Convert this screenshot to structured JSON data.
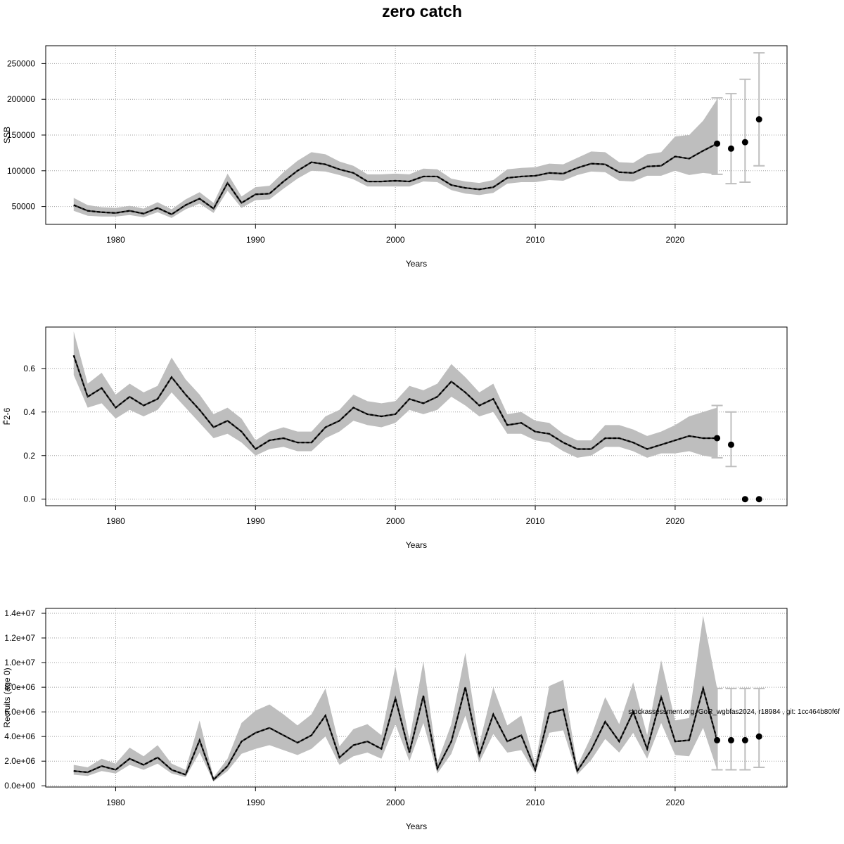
{
  "title": "zero catch",
  "watermark": "stockassessment.org, GoR_wgbfas2024, r18984 , git: 1cc464b80f6f",
  "colors": {
    "band": "#bebebe",
    "errorbar": "#bebebe",
    "line": "#000000",
    "grid": "#a0a0a0"
  },
  "chart_data": [
    {
      "type": "line",
      "panel": "ssb",
      "ylabel": "SSB",
      "xlabel": "Years",
      "xlim": [
        1975,
        2028
      ],
      "ylim": [
        25000,
        275000
      ],
      "xticks": [
        1980,
        1990,
        2000,
        2010,
        2020
      ],
      "yticks": [
        50000,
        100000,
        150000,
        200000,
        250000
      ],
      "ytick_labels": [
        "50000",
        "100000",
        "150000",
        "200000",
        "250000"
      ],
      "grid": true,
      "x": [
        1977,
        1978,
        1979,
        1980,
        1981,
        1982,
        1983,
        1984,
        1985,
        1986,
        1987,
        1988,
        1989,
        1990,
        1991,
        1992,
        1993,
        1994,
        1995,
        1996,
        1997,
        1998,
        1999,
        2000,
        2001,
        2002,
        2003,
        2004,
        2005,
        2006,
        2007,
        2008,
        2009,
        2010,
        2011,
        2012,
        2013,
        2014,
        2015,
        2016,
        2017,
        2018,
        2019,
        2020,
        2021,
        2022,
        2023
      ],
      "estimate": [
        52000,
        44000,
        42000,
        41000,
        44000,
        40000,
        48000,
        39000,
        52000,
        61000,
        47000,
        83000,
        55000,
        67000,
        68000,
        85000,
        100000,
        112000,
        109000,
        102000,
        97000,
        85000,
        85000,
        86000,
        85000,
        92000,
        92000,
        80000,
        76000,
        74000,
        77000,
        90000,
        92000,
        93000,
        97000,
        96000,
        104000,
        110000,
        109000,
        98000,
        97000,
        106000,
        107000,
        120000,
        117000,
        128000,
        138000
      ],
      "lower": [
        44000,
        37000,
        36000,
        36000,
        38000,
        35000,
        42000,
        34000,
        46000,
        54000,
        41000,
        72000,
        48000,
        59000,
        60000,
        75000,
        89000,
        100000,
        99000,
        94000,
        88000,
        78000,
        78000,
        78000,
        78000,
        85000,
        84000,
        73000,
        68000,
        66000,
        69000,
        82000,
        84000,
        84000,
        87000,
        86000,
        94000,
        99000,
        98000,
        86000,
        85000,
        93000,
        93000,
        100000,
        94000,
        97000,
        95000
      ],
      "upper": [
        62000,
        52000,
        49000,
        48000,
        51000,
        47000,
        56000,
        46000,
        60000,
        70000,
        55000,
        96000,
        64000,
        77000,
        79000,
        98000,
        114000,
        126000,
        123000,
        113000,
        107000,
        95000,
        95000,
        96000,
        95000,
        103000,
        102000,
        89000,
        85000,
        83000,
        87000,
        102000,
        104000,
        105000,
        110000,
        109000,
        118000,
        127000,
        126000,
        112000,
        111000,
        123000,
        126000,
        148000,
        150000,
        170000,
        200000
      ],
      "forecast": {
        "x": [
          2023,
          2024,
          2025,
          2026
        ],
        "y": [
          138000,
          131000,
          140000,
          172000
        ],
        "lower": [
          95000,
          82000,
          84000,
          107000
        ],
        "upper": [
          202000,
          208000,
          228000,
          265000
        ]
      }
    },
    {
      "type": "line",
      "panel": "fbar",
      "ylabel": "F̄2-6",
      "xlabel": "Years",
      "xlim": [
        1975,
        2028
      ],
      "ylim": [
        -0.03,
        0.79
      ],
      "xticks": [
        1980,
        1990,
        2000,
        2010,
        2020
      ],
      "yticks": [
        0.0,
        0.2,
        0.4,
        0.6
      ],
      "ytick_labels": [
        "0.0",
        "0.2",
        "0.4",
        "0.6"
      ],
      "grid": true,
      "x": [
        1977,
        1978,
        1979,
        1980,
        1981,
        1982,
        1983,
        1984,
        1985,
        1986,
        1987,
        1988,
        1989,
        1990,
        1991,
        1992,
        1993,
        1994,
        1995,
        1996,
        1997,
        1998,
        1999,
        2000,
        2001,
        2002,
        2003,
        2004,
        2005,
        2006,
        2007,
        2008,
        2009,
        2010,
        2011,
        2012,
        2013,
        2014,
        2015,
        2016,
        2017,
        2018,
        2019,
        2020,
        2021,
        2022,
        2023
      ],
      "estimate": [
        0.66,
        0.47,
        0.51,
        0.42,
        0.47,
        0.43,
        0.46,
        0.56,
        0.48,
        0.41,
        0.33,
        0.36,
        0.31,
        0.23,
        0.27,
        0.28,
        0.26,
        0.26,
        0.33,
        0.36,
        0.42,
        0.39,
        0.38,
        0.39,
        0.46,
        0.44,
        0.47,
        0.54,
        0.49,
        0.43,
        0.46,
        0.34,
        0.35,
        0.31,
        0.3,
        0.26,
        0.23,
        0.23,
        0.28,
        0.28,
        0.26,
        0.23,
        0.25,
        0.27,
        0.29,
        0.28,
        0.28
      ],
      "lower": [
        0.57,
        0.42,
        0.44,
        0.37,
        0.41,
        0.38,
        0.41,
        0.49,
        0.42,
        0.35,
        0.28,
        0.3,
        0.26,
        0.2,
        0.23,
        0.24,
        0.22,
        0.22,
        0.28,
        0.31,
        0.36,
        0.34,
        0.33,
        0.35,
        0.41,
        0.39,
        0.41,
        0.47,
        0.43,
        0.38,
        0.4,
        0.3,
        0.3,
        0.27,
        0.26,
        0.22,
        0.19,
        0.2,
        0.24,
        0.24,
        0.22,
        0.19,
        0.21,
        0.21,
        0.22,
        0.2,
        0.19
      ],
      "upper": [
        0.77,
        0.53,
        0.58,
        0.48,
        0.53,
        0.49,
        0.52,
        0.65,
        0.55,
        0.48,
        0.39,
        0.42,
        0.37,
        0.27,
        0.31,
        0.33,
        0.31,
        0.31,
        0.38,
        0.41,
        0.48,
        0.45,
        0.44,
        0.45,
        0.52,
        0.5,
        0.53,
        0.62,
        0.56,
        0.49,
        0.53,
        0.39,
        0.4,
        0.36,
        0.35,
        0.3,
        0.27,
        0.27,
        0.34,
        0.34,
        0.32,
        0.29,
        0.31,
        0.34,
        0.38,
        0.4,
        0.42
      ],
      "forecast": {
        "x": [
          2023,
          2024,
          2025,
          2026
        ],
        "y": [
          0.28,
          0.25,
          0.0,
          0.0
        ],
        "lower": [
          0.19,
          0.15,
          null,
          null
        ],
        "upper": [
          0.43,
          0.4,
          null,
          null
        ]
      }
    },
    {
      "type": "line",
      "panel": "recruits",
      "ylabel": "Recruits (age 0)",
      "xlabel": "Years",
      "xlim": [
        1975,
        2028
      ],
      "ylim": [
        -100000,
        14400000
      ],
      "xticks": [
        1980,
        1990,
        2000,
        2010,
        2020
      ],
      "yticks": [
        0,
        2000000,
        4000000,
        6000000,
        8000000,
        10000000,
        12000000,
        14000000
      ],
      "ytick_labels": [
        "0.0e+00",
        "2.0e+06",
        "4.0e+06",
        "6.0e+06",
        "8.0e+06",
        "1.0e+07",
        "1.2e+07",
        "1.4e+07"
      ],
      "grid": true,
      "x": [
        1977,
        1978,
        1979,
        1980,
        1981,
        1982,
        1983,
        1984,
        1985,
        1986,
        1987,
        1988,
        1989,
        1990,
        1991,
        1992,
        1993,
        1994,
        1995,
        1996,
        1997,
        1998,
        1999,
        2000,
        2001,
        2002,
        2003,
        2004,
        2005,
        2006,
        2007,
        2008,
        2009,
        2010,
        2011,
        2012,
        2013,
        2014,
        2015,
        2016,
        2017,
        2018,
        2019,
        2020,
        2021,
        2022,
        2023
      ],
      "estimate": [
        1200000,
        1100000,
        1600000,
        1300000,
        2200000,
        1700000,
        2300000,
        1300000,
        900000,
        3700000,
        500000,
        1600000,
        3600000,
        4300000,
        4700000,
        4100000,
        3500000,
        4100000,
        5700000,
        2300000,
        3300000,
        3600000,
        3000000,
        7100000,
        2700000,
        7300000,
        1400000,
        3600000,
        8000000,
        2500000,
        5800000,
        3600000,
        4100000,
        1300000,
        5900000,
        6200000,
        1200000,
        2900000,
        5200000,
        3600000,
        6000000,
        3000000,
        7200000,
        3600000,
        3700000,
        7900000,
        3700000
      ],
      "lower": [
        900000,
        800000,
        1200000,
        1000000,
        1700000,
        1300000,
        1800000,
        1000000,
        700000,
        2700000,
        350000,
        1200000,
        2600000,
        3000000,
        3300000,
        2900000,
        2500000,
        3000000,
        4000000,
        1700000,
        2400000,
        2700000,
        2200000,
        5000000,
        2000000,
        5100000,
        1000000,
        2600000,
        5700000,
        1900000,
        4200000,
        2700000,
        2900000,
        1000000,
        4300000,
        4500000,
        900000,
        2100000,
        3800000,
        2700000,
        4300000,
        2200000,
        5100000,
        2500000,
        2400000,
        4700000,
        1300000
      ],
      "upper": [
        1700000,
        1500000,
        2200000,
        1800000,
        3100000,
        2400000,
        3300000,
        1800000,
        1300000,
        5300000,
        700000,
        2200000,
        5100000,
        6100000,
        6600000,
        5800000,
        4900000,
        5800000,
        7900000,
        3200000,
        4600000,
        5000000,
        4100000,
        9700000,
        3700000,
        10100000,
        1900000,
        5000000,
        10800000,
        3400000,
        8000000,
        4900000,
        5700000,
        1800000,
        8100000,
        8600000,
        1600000,
        4000000,
        7200000,
        5000000,
        8400000,
        4100000,
        10200000,
        5300000,
        5500000,
        13800000,
        7900000
      ],
      "forecast": {
        "x": [
          2023,
          2024,
          2025,
          2026
        ],
        "y": [
          3700000,
          3700000,
          3700000,
          4000000
        ],
        "lower": [
          1300000,
          1300000,
          1300000,
          1500000
        ],
        "upper": [
          7900000,
          7900000,
          7900000,
          7900000
        ]
      }
    }
  ]
}
